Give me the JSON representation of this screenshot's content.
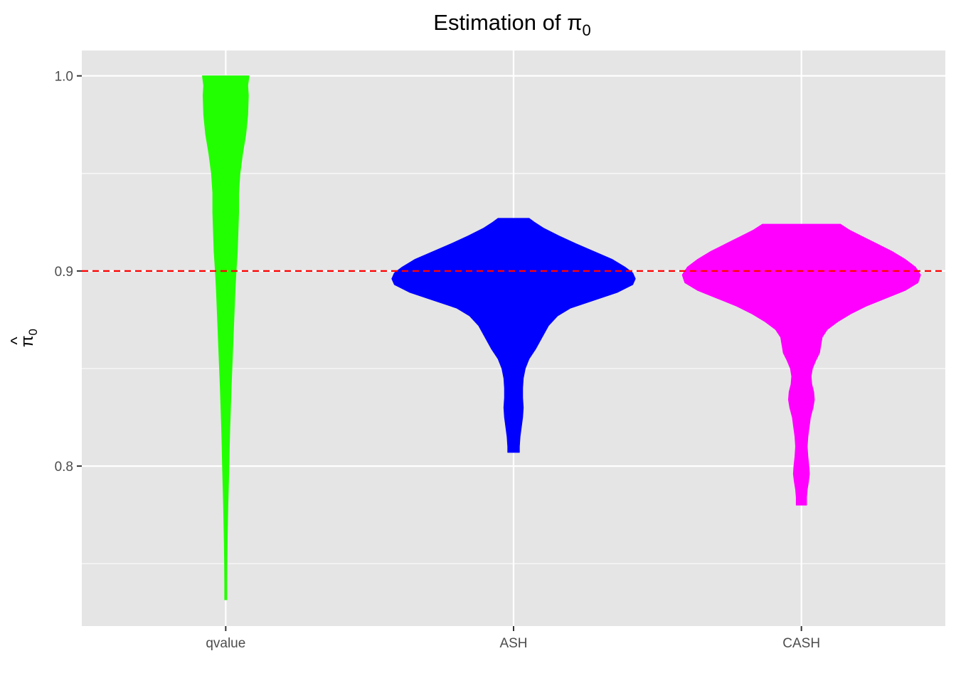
{
  "chart_data": {
    "type": "violin",
    "title": "Estimation of π",
    "title_subscript": "0",
    "ylabel": "π",
    "ylabel_subscript": "0",
    "ylabel_hat": "^",
    "xlabel": "",
    "ylim": [
      0.718,
      1.013
    ],
    "y_ticks": [
      0.8,
      0.9,
      1.0
    ],
    "y_tick_labels": [
      "0.8",
      "0.9",
      "1.0"
    ],
    "y_minor_ticks": [
      0.75,
      0.85,
      0.95
    ],
    "categories": [
      "qvalue",
      "ASH",
      "CASH"
    ],
    "reference_line": {
      "y": 0.9,
      "color": "#ff0000",
      "style": "dashed"
    },
    "panel_background": "#e5e5e5",
    "grid": true,
    "legend": "none",
    "series": [
      {
        "category": "qvalue",
        "color": "#22ff00",
        "min": 0.7315,
        "max": 1.0,
        "density_profile": [
          [
            1.0,
            0.18
          ],
          [
            0.995,
            0.17
          ],
          [
            0.99,
            0.175
          ],
          [
            0.98,
            0.17
          ],
          [
            0.97,
            0.155
          ],
          [
            0.96,
            0.13
          ],
          [
            0.95,
            0.11
          ],
          [
            0.94,
            0.1
          ],
          [
            0.93,
            0.1
          ],
          [
            0.92,
            0.095
          ],
          [
            0.91,
            0.09
          ],
          [
            0.9,
            0.08
          ],
          [
            0.89,
            0.072
          ],
          [
            0.88,
            0.066
          ],
          [
            0.87,
            0.06
          ],
          [
            0.86,
            0.054
          ],
          [
            0.85,
            0.048
          ],
          [
            0.84,
            0.042
          ],
          [
            0.83,
            0.037
          ],
          [
            0.82,
            0.032
          ],
          [
            0.81,
            0.028
          ],
          [
            0.8,
            0.025
          ],
          [
            0.79,
            0.021
          ],
          [
            0.78,
            0.017
          ],
          [
            0.77,
            0.014
          ],
          [
            0.76,
            0.011
          ],
          [
            0.75,
            0.009
          ],
          [
            0.74,
            0.008
          ],
          [
            0.7315,
            0.008
          ]
        ]
      },
      {
        "category": "ASH",
        "color": "#0000ff",
        "min": 0.807,
        "max": 0.927,
        "density_profile": [
          [
            0.927,
            0.12
          ],
          [
            0.925,
            0.16
          ],
          [
            0.922,
            0.23
          ],
          [
            0.918,
            0.35
          ],
          [
            0.914,
            0.48
          ],
          [
            0.91,
            0.62
          ],
          [
            0.906,
            0.76
          ],
          [
            0.902,
            0.86
          ],
          [
            0.899,
            0.92
          ],
          [
            0.896,
            0.94
          ],
          [
            0.893,
            0.92
          ],
          [
            0.889,
            0.8
          ],
          [
            0.885,
            0.62
          ],
          [
            0.881,
            0.44
          ],
          [
            0.877,
            0.34
          ],
          [
            0.872,
            0.27
          ],
          [
            0.866,
            0.22
          ],
          [
            0.86,
            0.17
          ],
          [
            0.855,
            0.12
          ],
          [
            0.85,
            0.09
          ],
          [
            0.845,
            0.075
          ],
          [
            0.84,
            0.07
          ],
          [
            0.835,
            0.07
          ],
          [
            0.83,
            0.075
          ],
          [
            0.825,
            0.07
          ],
          [
            0.82,
            0.06
          ],
          [
            0.815,
            0.05
          ],
          [
            0.81,
            0.045
          ],
          [
            0.807,
            0.045
          ]
        ]
      },
      {
        "category": "CASH",
        "color": "#ff00ff",
        "min": 0.78,
        "max": 0.924,
        "density_profile": [
          [
            0.924,
            0.3
          ],
          [
            0.921,
            0.37
          ],
          [
            0.918,
            0.46
          ],
          [
            0.914,
            0.58
          ],
          [
            0.91,
            0.7
          ],
          [
            0.906,
            0.8
          ],
          [
            0.902,
            0.88
          ],
          [
            0.898,
            0.92
          ],
          [
            0.894,
            0.9
          ],
          [
            0.89,
            0.8
          ],
          [
            0.886,
            0.65
          ],
          [
            0.882,
            0.5
          ],
          [
            0.878,
            0.38
          ],
          [
            0.874,
            0.28
          ],
          [
            0.87,
            0.2
          ],
          [
            0.866,
            0.16
          ],
          [
            0.862,
            0.15
          ],
          [
            0.858,
            0.14
          ],
          [
            0.854,
            0.11
          ],
          [
            0.85,
            0.085
          ],
          [
            0.846,
            0.075
          ],
          [
            0.842,
            0.08
          ],
          [
            0.838,
            0.095
          ],
          [
            0.834,
            0.1
          ],
          [
            0.83,
            0.09
          ],
          [
            0.825,
            0.07
          ],
          [
            0.82,
            0.06
          ],
          [
            0.815,
            0.05
          ],
          [
            0.81,
            0.045
          ],
          [
            0.805,
            0.05
          ],
          [
            0.8,
            0.058
          ],
          [
            0.796,
            0.062
          ],
          [
            0.792,
            0.055
          ],
          [
            0.788,
            0.045
          ],
          [
            0.784,
            0.04
          ],
          [
            0.78,
            0.04
          ]
        ]
      }
    ]
  }
}
